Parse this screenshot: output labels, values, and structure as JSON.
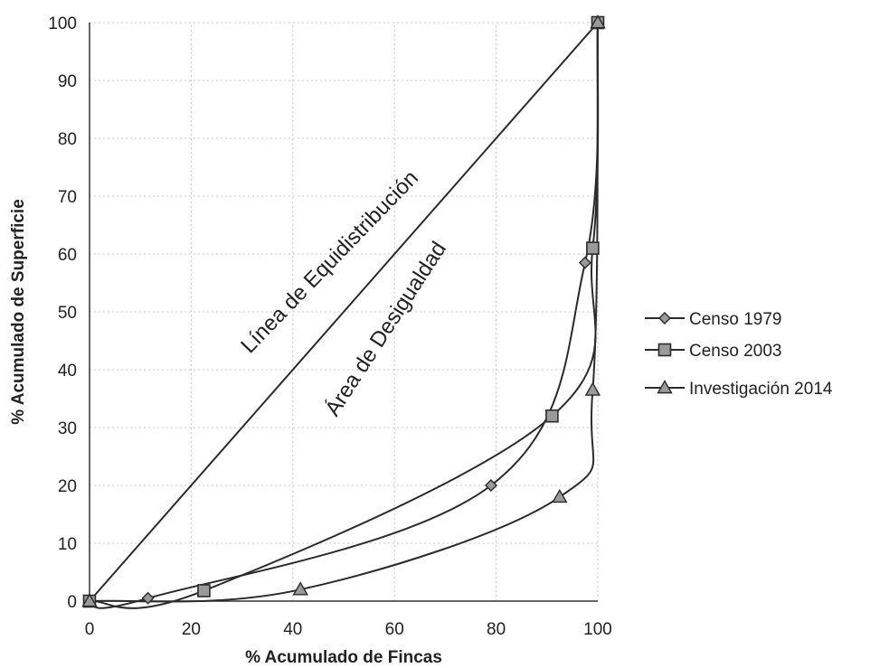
{
  "chart_data": {
    "type": "line",
    "xlabel": "% Acumulado de Fincas",
    "ylabel": "% Acumulado de Superficie",
    "xlim": [
      0,
      100
    ],
    "ylim": [
      0,
      100
    ],
    "x_ticks": [
      "0",
      "20",
      "40",
      "60",
      "80",
      "100"
    ],
    "y_ticks": [
      "0",
      "10",
      "20",
      "30",
      "40",
      "50",
      "60",
      "70",
      "80",
      "90",
      "100"
    ],
    "grid": false,
    "legend_position": "right",
    "annotations": {
      "equidistribution": "Línea de Equidistribución",
      "inequality": "Área de Desigualdad"
    },
    "equidistribution_line": {
      "x": [
        0,
        100
      ],
      "y": [
        0,
        100
      ]
    },
    "series": [
      {
        "name": "Censo 1979",
        "marker": "diamond",
        "x": [
          0,
          11.5,
          79,
          97.5,
          100
        ],
        "y": [
          0,
          0.5,
          20,
          58.5,
          100
        ]
      },
      {
        "name": "Censo 2003",
        "marker": "square",
        "x": [
          0,
          22.5,
          91,
          99,
          100
        ],
        "y": [
          0,
          1.8,
          32,
          61,
          100
        ]
      },
      {
        "name": "Investigación 2014",
        "marker": "triangle",
        "x": [
          0,
          41.5,
          92.5,
          99,
          100
        ],
        "y": [
          0,
          2,
          18,
          36.5,
          100
        ]
      }
    ],
    "colors": {
      "line": "#2b2b2b",
      "marker_fill": "#9a9a9a"
    }
  }
}
